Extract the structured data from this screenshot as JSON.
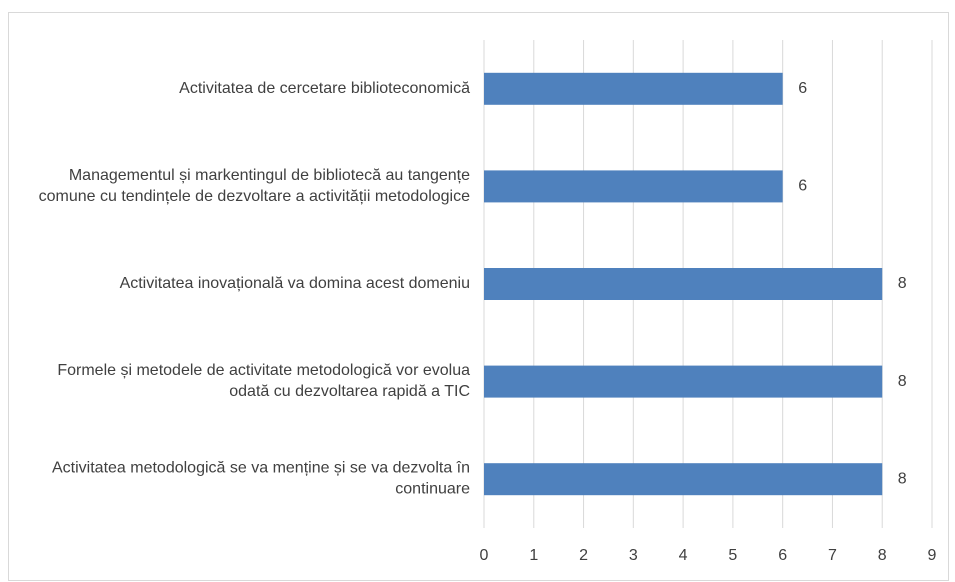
{
  "chart_data": {
    "type": "bar",
    "orientation": "horizontal",
    "categories": [
      "Activitatea de cercetare biblioteconomică",
      "Managementul și markentingul de bibliotecă au tangențe comune cu tendințele de dezvoltare a activității metodologice",
      "Activitatea inovațională va domina acest domeniu",
      "Formele și metodele de activitate metodologică vor evolua odată cu dezvoltarea rapidă a TIC",
      "Activitatea metodologică se va menține și se va dezvolta în continuare"
    ],
    "values": [
      6,
      6,
      8,
      8,
      8
    ],
    "color": "#4f81bd",
    "xlim": [
      0,
      9
    ],
    "xticks": [
      0,
      1,
      2,
      3,
      4,
      5,
      6,
      7,
      8,
      9
    ],
    "grid": true
  }
}
